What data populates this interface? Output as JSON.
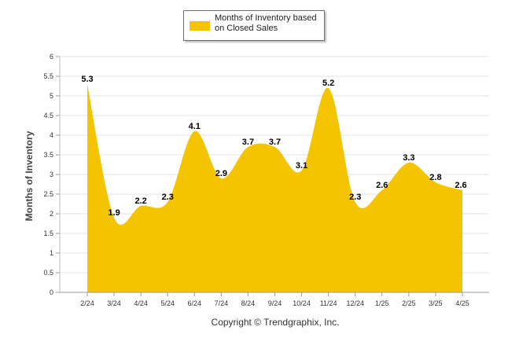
{
  "chart_data": {
    "type": "area",
    "categories": [
      "2/24",
      "3/24",
      "4/24",
      "5/24",
      "6/24",
      "7/24",
      "8/24",
      "9/24",
      "10/24",
      "11/24",
      "12/24",
      "1/25",
      "2/25",
      "3/25",
      "4/25"
    ],
    "series": [
      {
        "name": "Months of Inventory based on Closed Sales",
        "values": [
          5.3,
          1.9,
          2.2,
          2.3,
          4.1,
          2.9,
          3.7,
          3.7,
          3.1,
          5.2,
          2.3,
          2.6,
          3.3,
          2.8,
          2.6
        ]
      }
    ],
    "title": "",
    "xlabel": "",
    "ylabel": "Months of Inventory",
    "ylim": [
      0,
      6
    ],
    "y_ticks": [
      "0",
      "0.5",
      "1",
      "1.5",
      "2",
      "2.5",
      "3",
      "3.5",
      "4",
      "4.5",
      "5",
      "5.5",
      "6"
    ],
    "grid": true,
    "legend_position": "top-center",
    "footer": "Copyright © Trendgraphix, Inc.",
    "colors": {
      "area": "#F5C400",
      "grid": "#e3e3e3",
      "axis": "#555555"
    }
  }
}
